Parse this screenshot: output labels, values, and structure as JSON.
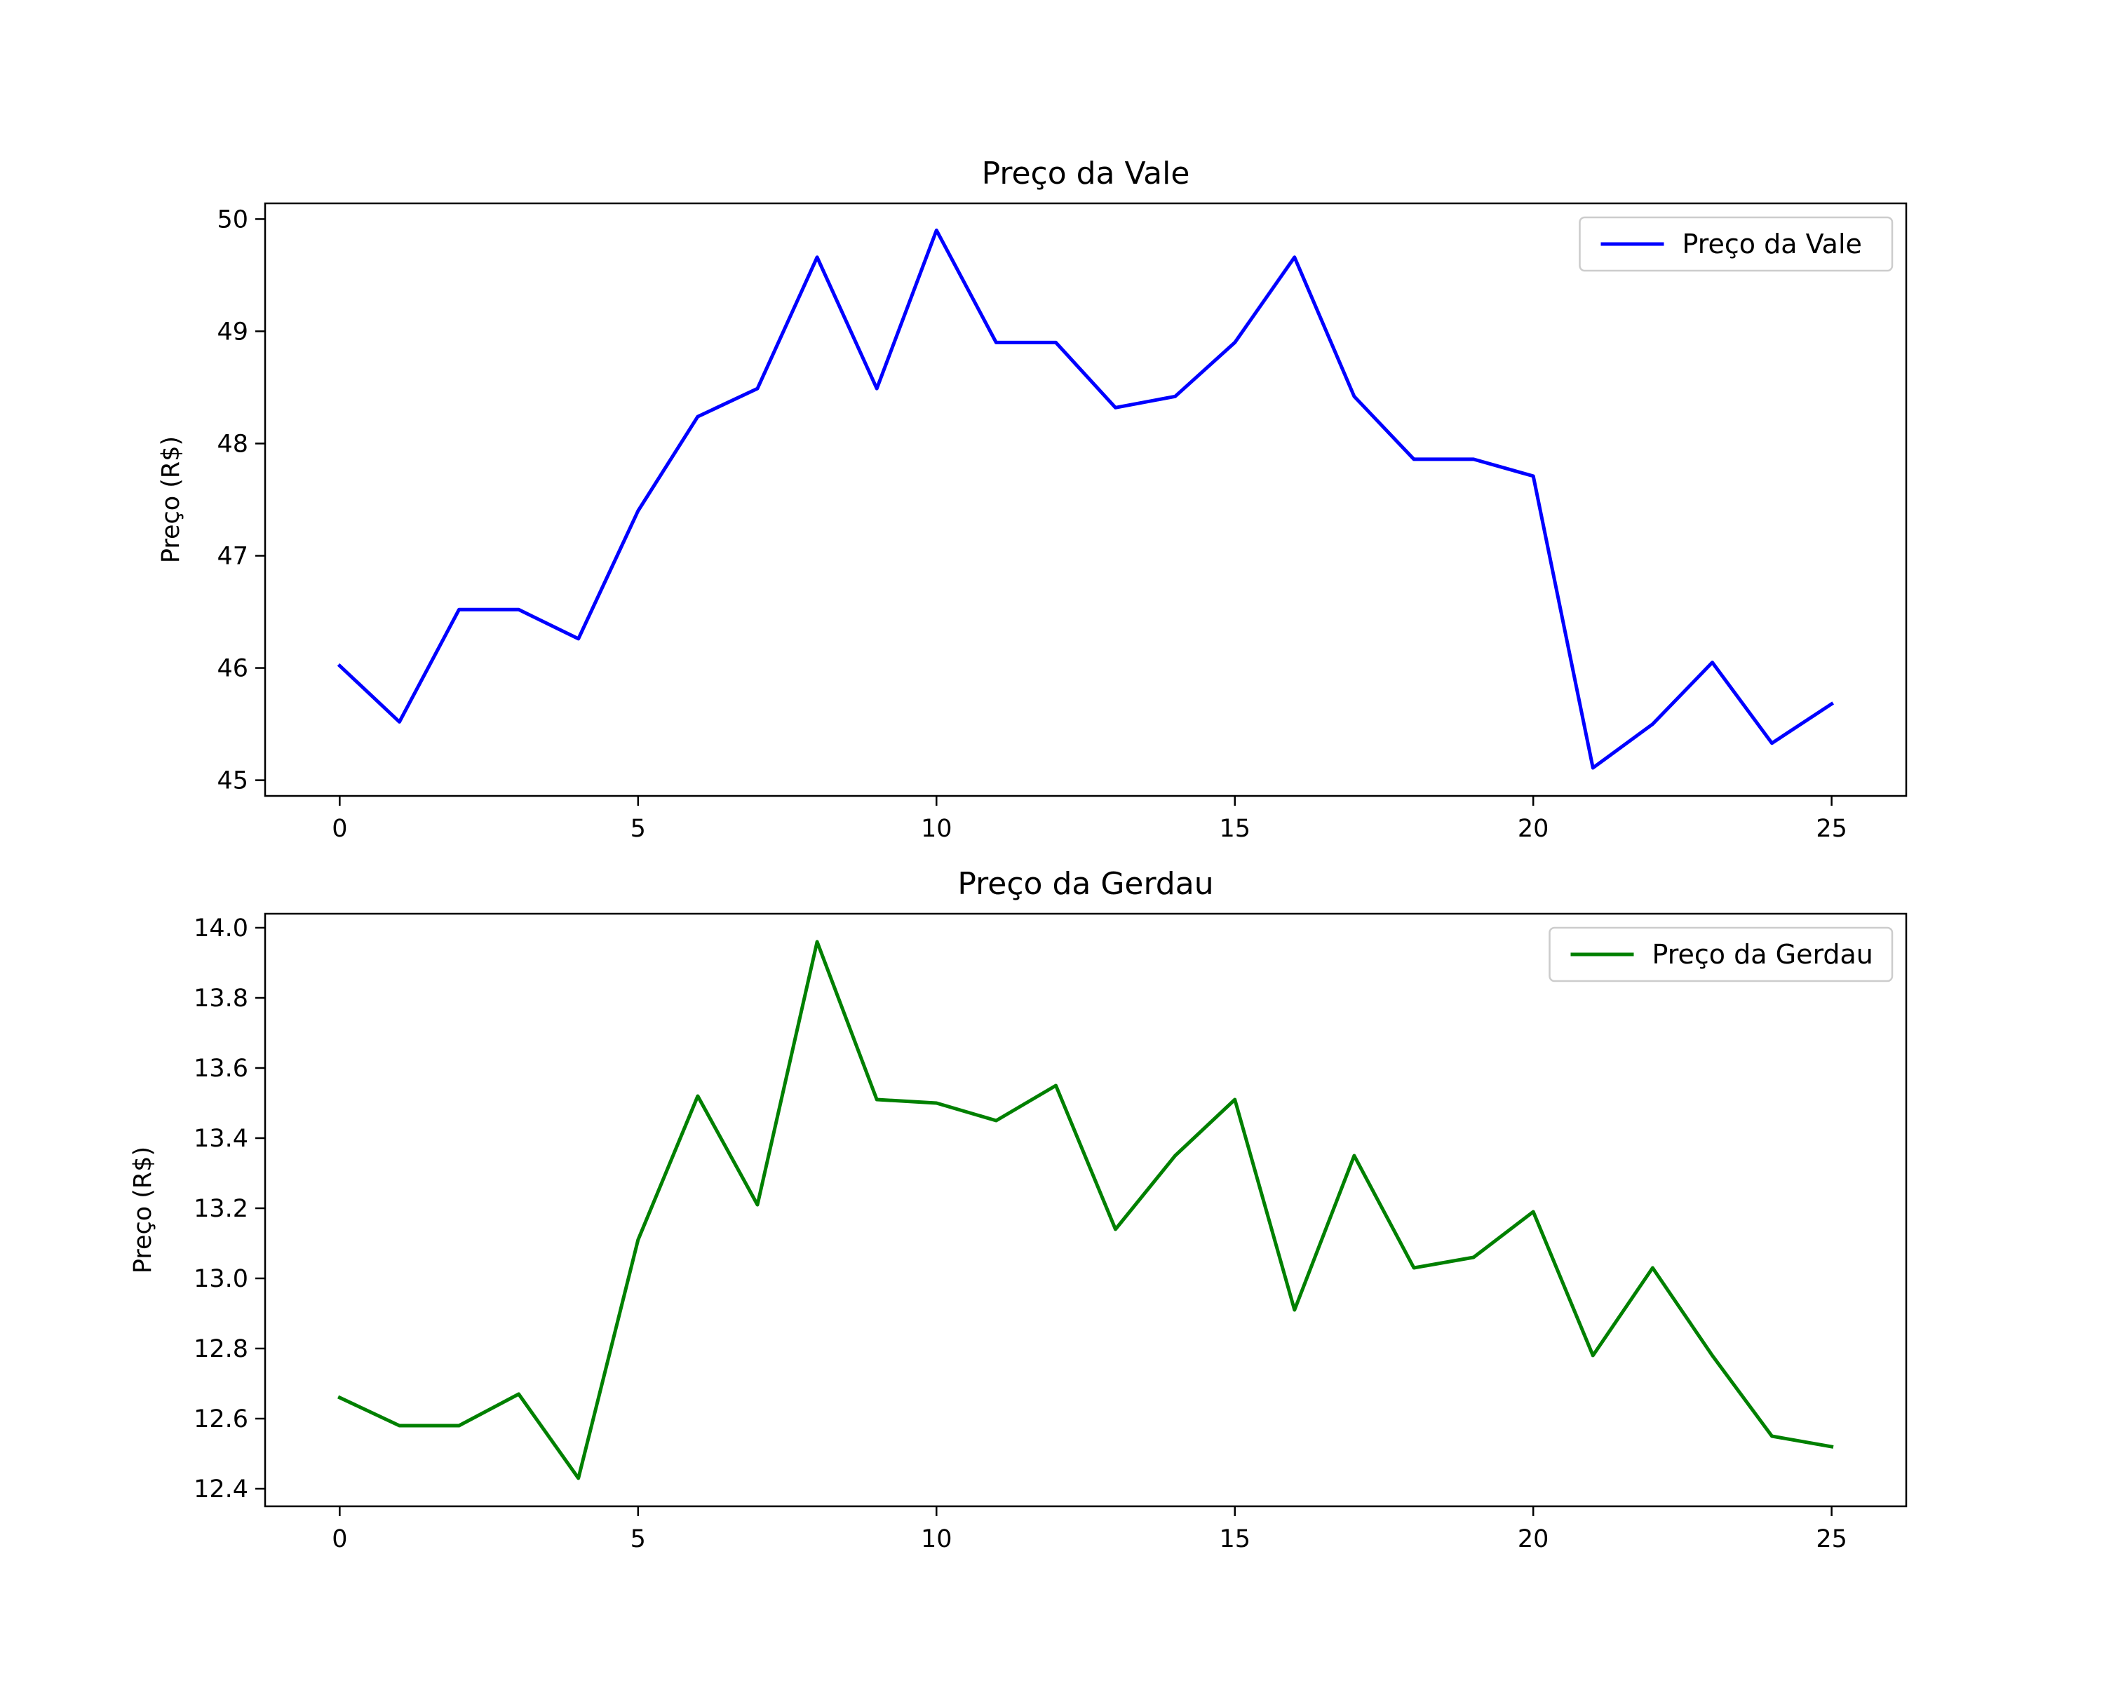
{
  "chart_data": [
    {
      "type": "line",
      "title": "Preço da Vale",
      "xlabel": "",
      "ylabel": "Preço (R$)",
      "xlim": [
        -1.25,
        26.25
      ],
      "ylim": [
        44.86,
        50.14
      ],
      "xticks": [
        0,
        5,
        10,
        15,
        20,
        25
      ],
      "xtick_labels": [
        "0",
        "5",
        "10",
        "15",
        "20",
        "25"
      ],
      "yticks": [
        45,
        46,
        47,
        48,
        49,
        50
      ],
      "ytick_labels": [
        "45",
        "46",
        "47",
        "48",
        "49",
        "50"
      ],
      "grid": false,
      "legend": "top-right",
      "series": [
        {
          "name": "Preço da Vale",
          "color": "#0000ff",
          "x": [
            0,
            1,
            2,
            3,
            4,
            5,
            6,
            7,
            8,
            9,
            10,
            11,
            12,
            13,
            14,
            15,
            16,
            17,
            18,
            19,
            20,
            21,
            22,
            23,
            24,
            25
          ],
          "values": [
            46.02,
            45.52,
            46.52,
            46.52,
            46.26,
            47.4,
            48.24,
            48.49,
            49.66,
            48.49,
            49.9,
            48.9,
            48.9,
            48.32,
            48.42,
            48.9,
            49.66,
            48.42,
            47.86,
            47.86,
            47.71,
            45.11,
            45.5,
            46.05,
            45.33,
            45.68
          ]
        }
      ]
    },
    {
      "type": "line",
      "title": "Preço da Gerdau",
      "xlabel": "",
      "ylabel": "Preço (R$)",
      "xlim": [
        -1.25,
        26.25
      ],
      "ylim": [
        12.35,
        14.04
      ],
      "xticks": [
        0,
        5,
        10,
        15,
        20,
        25
      ],
      "xtick_labels": [
        "0",
        "5",
        "10",
        "15",
        "20",
        "25"
      ],
      "yticks": [
        12.4,
        12.6,
        12.8,
        13.0,
        13.2,
        13.4,
        13.6,
        13.8,
        14.0
      ],
      "ytick_labels": [
        "12.4",
        "12.6",
        "12.8",
        "13.0",
        "13.2",
        "13.4",
        "13.6",
        "13.8",
        "14.0"
      ],
      "grid": false,
      "legend": "top-right",
      "series": [
        {
          "name": "Preço da Gerdau",
          "color": "#008000",
          "x": [
            0,
            1,
            2,
            3,
            4,
            5,
            6,
            7,
            8,
            9,
            10,
            11,
            12,
            13,
            14,
            15,
            16,
            17,
            18,
            19,
            20,
            21,
            22,
            23,
            24,
            25
          ],
          "values": [
            12.66,
            12.58,
            12.58,
            12.67,
            12.43,
            13.11,
            13.52,
            13.21,
            13.96,
            13.51,
            13.5,
            13.45,
            13.55,
            13.14,
            13.35,
            13.51,
            12.91,
            13.35,
            13.03,
            13.06,
            13.19,
            12.78,
            13.03,
            12.78,
            12.55,
            12.52
          ]
        }
      ]
    }
  ]
}
